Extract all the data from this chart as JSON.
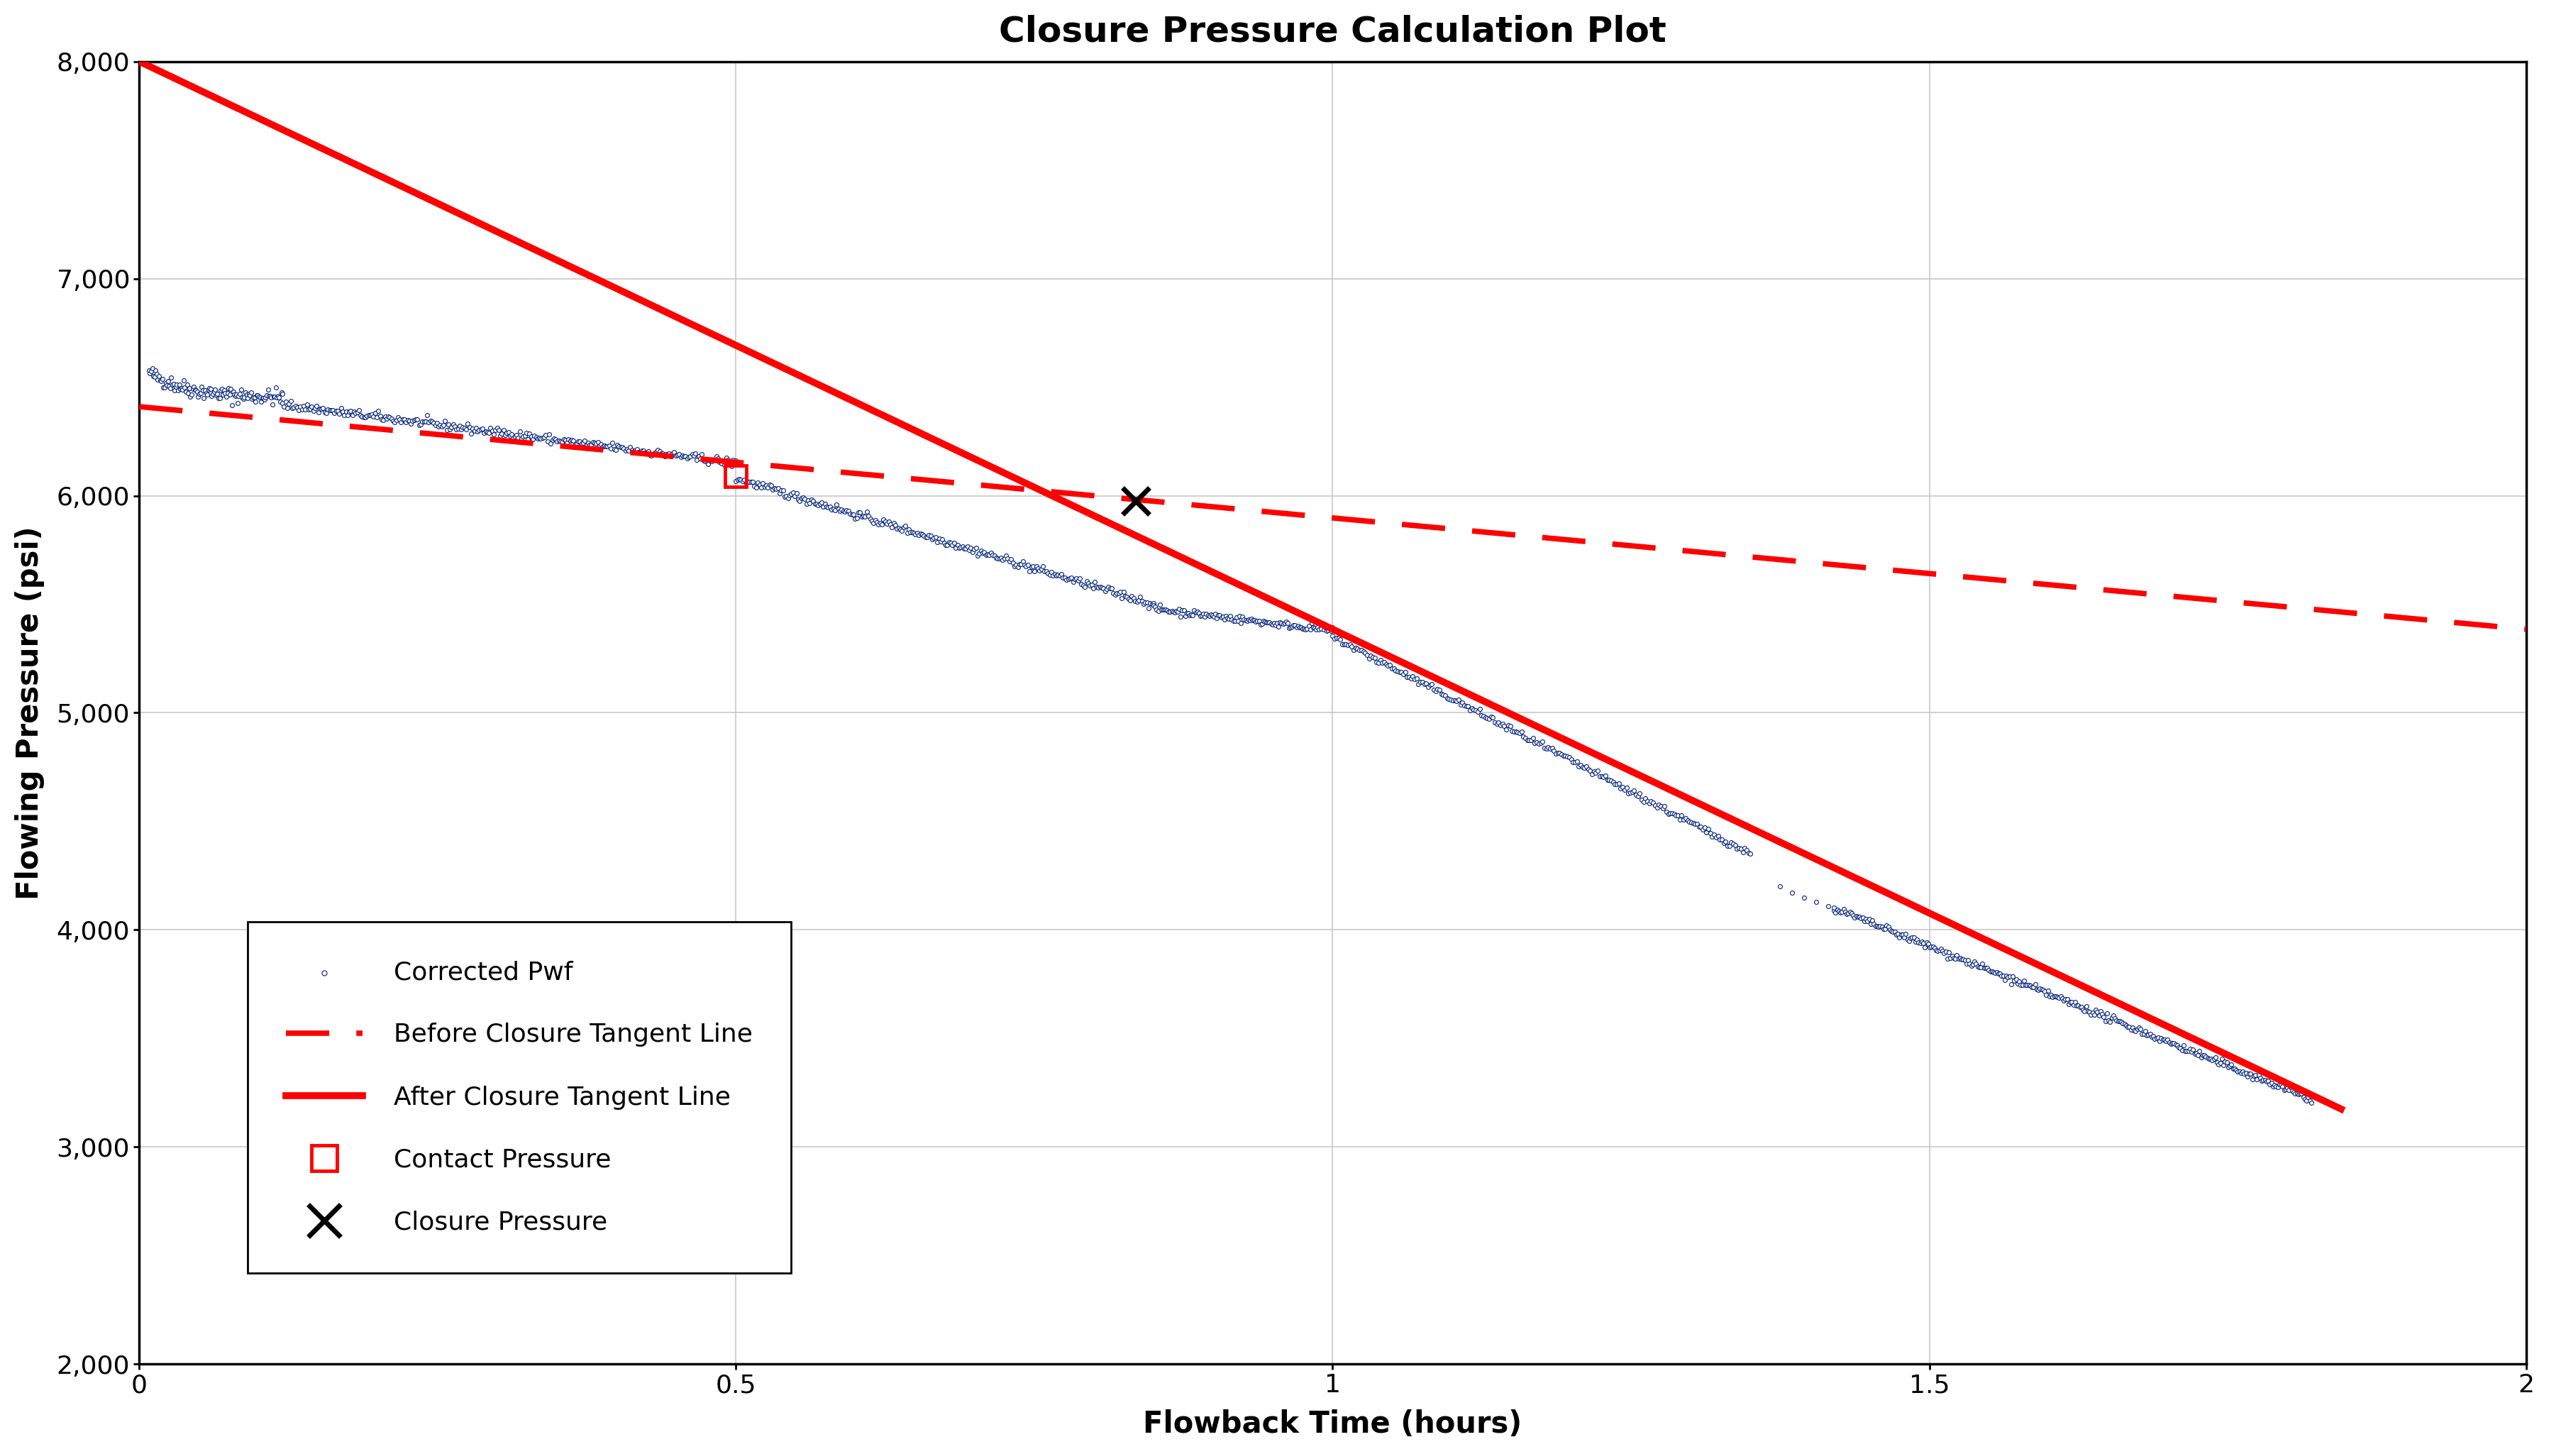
{
  "title": "Closure Pressure Calculation Plot",
  "xlabel": "Flowback Time (hours)",
  "ylabel": "Flowing Pressure (psi)",
  "xlim": [
    0,
    2
  ],
  "ylim": [
    2000,
    8000
  ],
  "xticks": [
    0,
    0.5,
    1,
    1.5,
    2
  ],
  "yticks": [
    2000,
    3000,
    4000,
    5000,
    6000,
    7000,
    8000
  ],
  "background_color": "#ffffff",
  "grid_color": "#c8c8c8",
  "pwf_color": "#001f7a",
  "before_closure_color": "#ff0000",
  "after_closure_color": "#ff0000",
  "contact_pressure_color": "#ff0000",
  "closure_pressure_color": "#000000",
  "contact_pressure_point": [
    0.5,
    6090
  ],
  "closure_pressure_point": [
    0.835,
    5975
  ],
  "before_closure_line": [
    [
      0.0,
      6410
    ],
    [
      2.0,
      5385
    ]
  ],
  "after_closure_line": [
    [
      0.0,
      8000
    ],
    [
      1.845,
      3175
    ]
  ],
  "title_fontsize": 36,
  "axis_label_fontsize": 30,
  "tick_fontsize": 26,
  "legend_fontsize": 26
}
